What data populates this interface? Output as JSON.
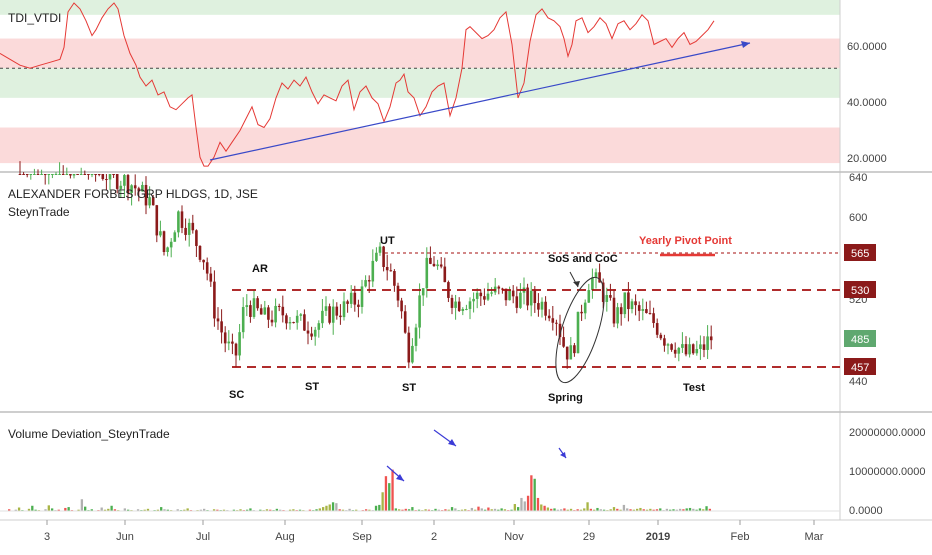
{
  "panels": {
    "tdi": {
      "title": "TDI_VTDI"
    },
    "price": {
      "title": "ALEXANDER FORBES GRP HLDGS, 1D, JSE",
      "subtitle": "SteynTrade"
    },
    "volume": {
      "title": "Volume Deviation_SteynTrade"
    }
  },
  "x_axis": {
    "labels": [
      "3",
      "Jun",
      "Jul",
      "Aug",
      "Sep",
      "2",
      "Nov",
      "29",
      "2019",
      "Feb",
      "Mar"
    ]
  },
  "tdi_axis": [
    "60.0000",
    "40.0000",
    "20.0000"
  ],
  "price_axis": [
    "640",
    "600",
    "520",
    "440"
  ],
  "volume_axis": [
    "20000000.0000",
    "10000000.0000",
    "0.0000"
  ],
  "price_badges": [
    {
      "value": "565",
      "color": "#8b1a1a"
    },
    {
      "value": "530",
      "color": "#8b1a1a"
    },
    {
      "value": "485",
      "color": "#5fa86f"
    },
    {
      "value": "457",
      "color": "#8b1a1a"
    }
  ],
  "annotations": {
    "ar": "AR",
    "sc": "SC",
    "st1": "ST",
    "st2": "ST",
    "ut": "UT",
    "sos": "SoS and CoC",
    "spring": "Spring",
    "test": "Test",
    "pivot": "Yearly Pivot Point"
  },
  "colors": {
    "tdi_line": "#e53935",
    "trendline": "#3949c8",
    "level_line": "#a50f0f",
    "candle_up": "#4caf50",
    "candle_down": "#8b1a1a",
    "arrow": "#3b3bd6"
  },
  "chart_data": [
    {
      "type": "line",
      "title": "TDI_VTDI",
      "ylim": [
        15,
        73
      ],
      "bands": [
        [
          68,
          73
        ],
        [
          50,
          60
        ],
        [
          40,
          50
        ],
        [
          18,
          30
        ]
      ],
      "dashed_level": 50,
      "series": [
        {
          "x": [
            0,
            10,
            20,
            30,
            40,
            50,
            60,
            64,
            68,
            74,
            80,
            86,
            92,
            96,
            102,
            108,
            114,
            118,
            124,
            130,
            136,
            140,
            146,
            152,
            158,
            164,
            170,
            176,
            182,
            188,
            192,
            196,
            200,
            204,
            208,
            214,
            220,
            226,
            232,
            240,
            246,
            252,
            258,
            264,
            270,
            276,
            282,
            288,
            294,
            300,
            306,
            312,
            318,
            324,
            330,
            336,
            342,
            348,
            354,
            360,
            366,
            372,
            378,
            384,
            390,
            396,
            400,
            404,
            408,
            414,
            420,
            426,
            432,
            438,
            444,
            450,
            456,
            462,
            466,
            470,
            476,
            482,
            488,
            494,
            500,
            506,
            512,
            518,
            524,
            530,
            536,
            542,
            548,
            554,
            560,
            564,
            568,
            572,
            576,
            582,
            588,
            594,
            600,
            606,
            612,
            618,
            624,
            630,
            636,
            642,
            648,
            654,
            660,
            666,
            672,
            678,
            684,
            690,
            696,
            702,
            708,
            714
          ],
          "values": [
            55,
            53,
            51,
            50,
            51,
            52,
            53,
            57,
            69,
            72,
            70,
            66,
            61,
            63,
            67,
            70,
            72,
            70,
            61,
            55,
            51,
            47,
            44,
            46,
            41,
            42,
            37,
            36,
            38,
            40,
            41,
            30,
            20,
            17,
            17,
            20,
            25,
            22,
            25,
            29,
            33,
            37,
            31,
            30,
            33,
            40,
            45,
            43,
            46,
            44,
            47,
            42,
            38,
            41,
            40,
            39,
            44,
            46,
            36,
            42,
            44,
            40,
            38,
            32,
            37,
            45,
            46,
            48,
            42,
            40,
            34,
            37,
            42,
            44,
            45,
            34,
            40,
            50,
            63,
            64,
            62,
            60,
            61,
            63,
            67,
            69,
            58,
            40,
            45,
            59,
            68,
            70,
            67,
            66,
            64,
            60,
            54,
            58,
            66,
            67,
            62,
            64,
            67,
            65,
            60,
            65,
            66,
            63,
            65,
            68,
            66,
            58,
            59,
            60,
            57,
            60,
            62,
            58,
            59,
            61,
            63,
            66
          ]
        }
      ]
    },
    {
      "type": "candlestick",
      "title": "ALEXANDER FORBES GRP HLDGS, 1D, JSE",
      "ylim": [
        410,
        640
      ],
      "levels": [
        565,
        530,
        457
      ],
      "current_price": 485
    },
    {
      "type": "bar",
      "title": "Volume Deviation_SteynTrade",
      "ylim": [
        0,
        22500000
      ],
      "series": [
        {
          "values": [
            0.4,
            0.1,
            0.3,
            0.8,
            0.2,
            0.1,
            0.5,
            1.2,
            0.3,
            0.2,
            0.1,
            0.4,
            1.3,
            0.6,
            0.2,
            0.3,
            0.1,
            0.7,
            0.9,
            0.2,
            0.1,
            0.3,
            2.7,
            1.0,
            0.2,
            0.4,
            0.1,
            0.2,
            0.8,
            0.3,
            0.5,
            1.2,
            0.4,
            0.2,
            0.1,
            0.6,
            0.3,
            0.2,
            0.1,
            0.4,
            0.2,
            0.3,
            0.5,
            0.1,
            0.2,
            0.3,
            0.9,
            0.4,
            0.3,
            0.2,
            0.1,
            0.4,
            0.2,
            0.3,
            0.6,
            0.2,
            0.1,
            0.2,
            0.3,
            0.5,
            0.2,
            0.1,
            0.4,
            0.3,
            0.2,
            0.3,
            0.2,
            0.1,
            0.3,
            0.2,
            0.4,
            0.2,
            0.3,
            0.6,
            0.2,
            0.1,
            0.3,
            0.2,
            0.4,
            0.3,
            0.2,
            0.5,
            0.3,
            0.2,
            0.1,
            0.3,
            0.4,
            0.2,
            0.3,
            0.2,
            0.1,
            0.3,
            0.2,
            0.4,
            0.6,
            0.9,
            1.2,
            1.5,
            2.0,
            1.8,
            0.4,
            0.3,
            0.2,
            0.5,
            0.2,
            0.3,
            0.1,
            0.2,
            0.4,
            0.3,
            0.2,
            1.2,
            1.4,
            4.3,
            8.0,
            6.4,
            9.5,
            0.6,
            0.4,
            0.3,
            0.5,
            0.4,
            0.9,
            0.2,
            0.3,
            0.2,
            0.4,
            0.3,
            0.2,
            0.5,
            0.3,
            0.2,
            0.4,
            0.3,
            0.9,
            0.6,
            0.2,
            0.3,
            0.4,
            0.2,
            0.7,
            0.3,
            1.0,
            0.6,
            0.3,
            0.8,
            0.4,
            0.5,
            0.3,
            0.6,
            0.4,
            0.2,
            0.3,
            1.6,
            0.9,
            3.0,
            2.2,
            3.5,
            8.2,
            7.4,
            3.0,
            1.5,
            1.2,
            0.8,
            0.5,
            0.6,
            0.3,
            0.4,
            0.6,
            0.3,
            0.5,
            0.2,
            0.4,
            0.3,
            0.6,
            2.0,
            0.5,
            0.3,
            0.7,
            0.4,
            0.3,
            0.2,
            0.4,
            0.9,
            0.5,
            0.3,
            1.4,
            0.6,
            0.4,
            0.3,
            0.5,
            0.7,
            0.4,
            0.3,
            0.5,
            0.3,
            0.4,
            0.6,
            0.2,
            0.5,
            0.3,
            0.4,
            0.3,
            0.5,
            0.4,
            0.6,
            0.7,
            0.5,
            0.3,
            0.6,
            0.4,
            1.1,
            0.5
          ]
        }
      ]
    }
  ]
}
